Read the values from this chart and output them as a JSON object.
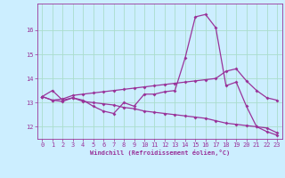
{
  "xlabel": "Windchill (Refroidissement éolien,°C)",
  "background_color": "#cceeff",
  "line_color": "#993399",
  "grid_color": "#aaddcc",
  "xlim": [
    -0.5,
    23.5
  ],
  "ylim": [
    11.5,
    17.1
  ],
  "xticks": [
    0,
    1,
    2,
    3,
    4,
    5,
    6,
    7,
    8,
    9,
    10,
    11,
    12,
    13,
    14,
    15,
    16,
    17,
    18,
    19,
    20,
    21,
    22,
    23
  ],
  "yticks": [
    12,
    13,
    14,
    15,
    16
  ],
  "curve1_x": [
    0,
    1,
    2,
    3,
    4,
    5,
    6,
    7,
    8,
    9,
    10,
    11,
    12,
    13,
    14,
    15,
    16,
    17,
    18,
    19,
    20,
    21,
    22,
    23
  ],
  "curve1_y": [
    13.25,
    13.5,
    13.1,
    13.2,
    13.1,
    12.85,
    12.65,
    12.55,
    13.0,
    12.85,
    13.35,
    13.35,
    13.45,
    13.5,
    14.85,
    16.55,
    16.65,
    16.1,
    13.7,
    13.85,
    12.85,
    12.0,
    11.8,
    11.65
  ],
  "curve2_x": [
    0,
    1,
    2,
    3,
    4,
    5,
    6,
    7,
    8,
    9,
    10,
    11,
    12,
    13,
    14,
    15,
    16,
    17,
    18,
    19,
    20,
    21,
    22,
    23
  ],
  "curve2_y": [
    13.25,
    13.1,
    13.05,
    13.2,
    13.05,
    13.0,
    12.95,
    12.9,
    12.8,
    12.75,
    12.65,
    12.6,
    12.55,
    12.5,
    12.45,
    12.4,
    12.35,
    12.25,
    12.15,
    12.1,
    12.05,
    12.0,
    11.95,
    11.75
  ],
  "curve3_x": [
    0,
    1,
    2,
    3,
    4,
    5,
    6,
    7,
    8,
    9,
    10,
    11,
    12,
    13,
    14,
    15,
    16,
    17,
    18,
    19,
    20,
    21,
    22,
    23
  ],
  "curve3_y": [
    13.25,
    13.1,
    13.15,
    13.3,
    13.35,
    13.4,
    13.45,
    13.5,
    13.55,
    13.6,
    13.65,
    13.7,
    13.75,
    13.8,
    13.85,
    13.9,
    13.95,
    14.0,
    14.3,
    14.4,
    13.9,
    13.5,
    13.2,
    13.1
  ]
}
